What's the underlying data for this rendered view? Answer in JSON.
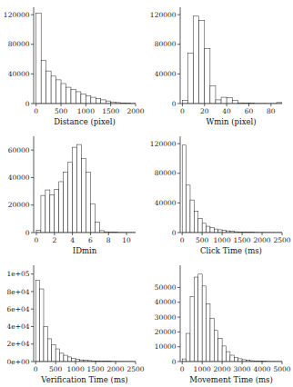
{
  "chart_data": [
    {
      "type": "histogram",
      "xlabel": "Distance (pixel)",
      "color": "white",
      "xlim": [
        -50,
        2000
      ],
      "ylim": [
        0,
        130000
      ],
      "xticks": [
        0,
        500,
        1000,
        1500,
        2000
      ],
      "yticks": [
        0,
        40000,
        80000,
        120000
      ],
      "bins": [
        0,
        100,
        200,
        300,
        400,
        500,
        600,
        700,
        800,
        900,
        1000,
        1100,
        1200,
        1300,
        1400,
        1500,
        1600,
        1700,
        1800,
        1900,
        2000
      ],
      "values": [
        122000,
        58000,
        44000,
        37000,
        32000,
        27000,
        22000,
        19000,
        16000,
        13000,
        10500,
        8500,
        6500,
        5000,
        3500,
        2200,
        1300,
        700,
        350,
        180
      ]
    },
    {
      "type": "histogram",
      "xlabel": "Wmin (pixel)",
      "color": "white",
      "xlim": [
        -2,
        90
      ],
      "ylim": [
        0,
        130000
      ],
      "xticks": [
        0,
        20,
        40,
        60,
        80
      ],
      "yticks": [
        0,
        40000,
        80000,
        120000
      ],
      "bins": [
        0,
        5,
        10,
        15,
        20,
        25,
        30,
        35,
        40,
        45,
        50,
        55,
        60,
        65,
        70,
        75,
        80,
        85,
        90
      ],
      "values": [
        4500,
        68000,
        118000,
        112000,
        74000,
        24000,
        5000,
        8500,
        8000,
        4500,
        1000,
        500,
        400,
        200,
        180,
        150,
        100,
        1400
      ]
    },
    {
      "type": "histogram",
      "xlabel": "IDmin",
      "color": "white",
      "xlim": [
        -0.3,
        11
      ],
      "ylim": [
        0,
        70000
      ],
      "xticks": [
        0,
        2,
        4,
        6,
        8,
        10
      ],
      "yticks": [
        0,
        20000,
        40000,
        60000
      ],
      "bins": [
        0,
        0.5,
        1.0,
        1.5,
        2.0,
        2.5,
        3.0,
        3.5,
        4.0,
        4.5,
        5.0,
        5.5,
        6.0,
        6.5,
        7.0,
        7.5,
        8.0,
        8.5,
        9.0,
        9.5,
        10.0,
        10.5,
        11.0
      ],
      "values": [
        1800,
        27000,
        31000,
        27500,
        31500,
        37000,
        44000,
        51000,
        62000,
        64000,
        54000,
        44000,
        21000,
        7500,
        1400,
        550,
        280,
        180,
        100,
        90,
        85,
        80
      ]
    },
    {
      "type": "histogram",
      "xlabel": "Click Time (ms)",
      "color": "white",
      "xlim": [
        -50,
        2500
      ],
      "ylim": [
        0,
        130000
      ],
      "xticks": [
        0,
        500,
        1000,
        1500,
        2000,
        2500
      ],
      "yticks": [
        0,
        40000,
        80000,
        120000
      ],
      "bins": [
        0,
        100,
        200,
        300,
        400,
        500,
        600,
        700,
        800,
        900,
        1000,
        1100,
        1200,
        1300,
        1400,
        1500,
        1600,
        1700,
        1800,
        1900,
        2000,
        2100,
        2200,
        2300,
        2400,
        2500
      ],
      "values": [
        118000,
        64000,
        44000,
        29000,
        19000,
        12500,
        8500,
        6500,
        4800,
        3800,
        2800,
        2300,
        1700,
        1100,
        850,
        570,
        470,
        370,
        280,
        190,
        185,
        140,
        95,
        95,
        75
      ]
    },
    {
      "type": "histogram",
      "xlabel": "Verification Time (ms)",
      "color": "white",
      "xlim": [
        -50,
        2500
      ],
      "ylim": [
        0,
        110000
      ],
      "xticks": [
        0,
        500,
        1000,
        1500,
        2000,
        2500
      ],
      "yticks": [
        {
          "value": 0,
          "label": "0e+00"
        },
        {
          "value": 20000,
          "label": "2e+04"
        },
        {
          "value": 40000,
          "label": "4e+04"
        },
        {
          "value": 60000,
          "label": "6e+04"
        },
        {
          "value": 80000,
          "label": "8e+04"
        },
        {
          "value": 100000,
          "label": "1e+05"
        }
      ],
      "bins": [
        0,
        100,
        200,
        300,
        400,
        500,
        600,
        700,
        800,
        900,
        1000,
        1100,
        1200,
        1300,
        1400,
        1500,
        1600,
        1700,
        1800,
        1900,
        2000,
        2100,
        2200,
        2300,
        2400,
        2500
      ],
      "values": [
        93000,
        83000,
        40000,
        26000,
        19000,
        14500,
        9500,
        7200,
        5300,
        3800,
        2800,
        1900,
        1400,
        1100,
        850,
        650,
        480,
        380,
        280,
        190,
        185,
        140,
        95,
        75,
        55
      ]
    },
    {
      "type": "histogram",
      "xlabel": "Movement Time (ms)",
      "color": "white",
      "xlim": [
        -100,
        5000
      ],
      "ylim": [
        0,
        65000
      ],
      "xticks": [
        0,
        1000,
        2000,
        3000,
        4000,
        5000
      ],
      "yticks": [
        0,
        10000,
        20000,
        30000,
        40000,
        50000
      ],
      "bins": [
        0,
        200,
        400,
        600,
        800,
        1000,
        1200,
        1400,
        1600,
        1800,
        2000,
        2200,
        2400,
        2600,
        2800,
        3000,
        3200,
        3400,
        3600,
        3800,
        4000,
        4200,
        4400,
        4600,
        4800,
        5000
      ],
      "values": [
        1800,
        19000,
        44000,
        57000,
        59000,
        51000,
        39000,
        29000,
        21000,
        15500,
        10500,
        6700,
        4300,
        2800,
        1900,
        1300,
        850,
        570,
        380,
        280,
        190,
        140,
        95,
        75,
        45
      ]
    }
  ]
}
